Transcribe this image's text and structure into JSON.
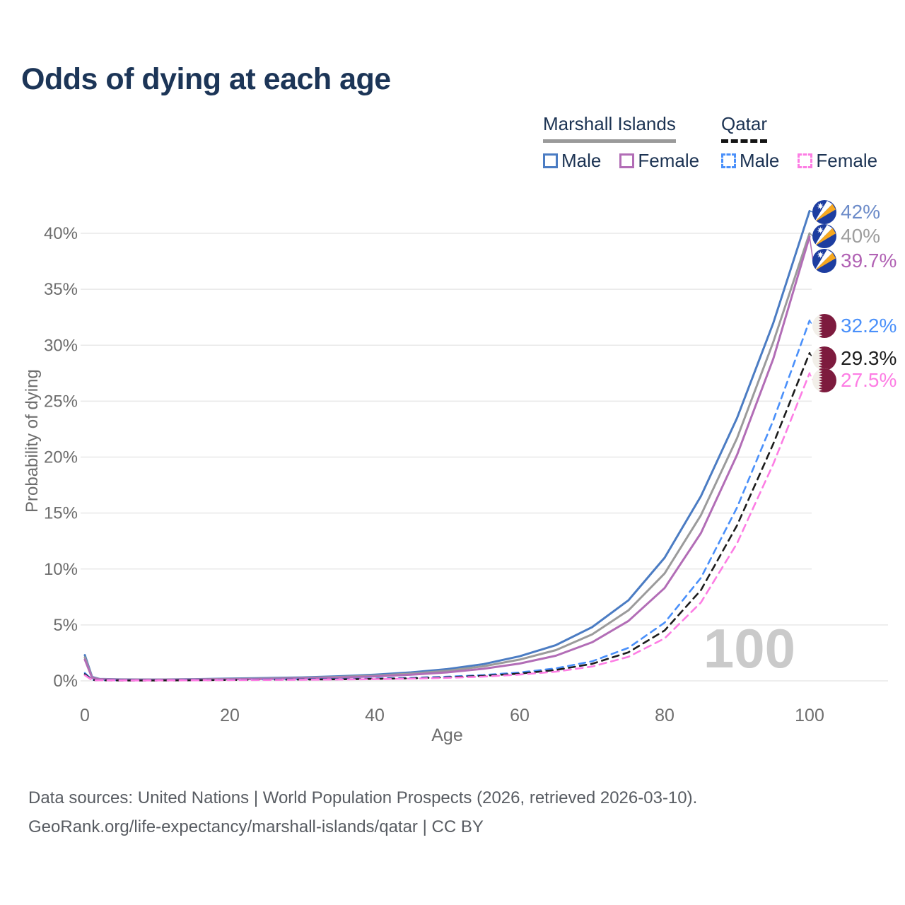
{
  "title": "Odds of dying at each age",
  "legend": {
    "groups": [
      {
        "label": "Marshall Islands",
        "line_style": "solid",
        "underline_color": "#9a9a9a",
        "items": [
          {
            "label": "Male",
            "color": "#4b7cc3"
          },
          {
            "label": "Female",
            "color": "#b26db6"
          }
        ]
      },
      {
        "label": "Qatar",
        "line_style": "dashed",
        "underline_color": "#141414",
        "items": [
          {
            "label": "Male",
            "color": "#4a90fa"
          },
          {
            "label": "Female",
            "color": "#fd7de4"
          }
        ]
      }
    ]
  },
  "axes": {
    "x": {
      "label": "Age",
      "ticks": [
        "0",
        "20",
        "40",
        "60",
        "80",
        "100"
      ]
    },
    "y": {
      "label": "Probability of dying",
      "ticks": [
        "0%",
        "5%",
        "10%",
        "15%",
        "20%",
        "25%",
        "30%",
        "35%",
        "40%"
      ]
    }
  },
  "watermark": "100",
  "end_labels": [
    {
      "value": "42%",
      "flag": "marshall-islands",
      "color": "#6d8cc9"
    },
    {
      "value": "40%",
      "flag": "marshall-islands",
      "color": "#9e9e9e"
    },
    {
      "value": "39.7%",
      "flag": "marshall-islands",
      "color": "#b162b4"
    },
    {
      "value": "32.2%",
      "flag": "qatar",
      "color": "#4a90fa"
    },
    {
      "value": "29.3%",
      "flag": "qatar",
      "color": "#1f1f1f"
    },
    {
      "value": "27.5%",
      "flag": "qatar",
      "color": "#fd7de4"
    }
  ],
  "footer": {
    "line1": "Data sources: United Nations | World Population Prospects (2026, retrieved 2026-03-10).",
    "line2": "GeoRank.org/life-expectancy/marshall-islands/qatar | CC BY"
  },
  "chart_data": {
    "type": "line",
    "title": "Odds of dying at each age",
    "xlabel": "Age",
    "ylabel": "Probability of dying",
    "xlim": [
      0,
      100
    ],
    "ylim_pct": [
      0,
      43
    ],
    "x_ticks": [
      0,
      20,
      40,
      60,
      80,
      100
    ],
    "y_ticks_pct": [
      0,
      5,
      10,
      15,
      20,
      25,
      30,
      35,
      40
    ],
    "grid": "horizontal",
    "legend_position": "top-right",
    "ages": [
      0,
      1,
      2,
      5,
      10,
      15,
      20,
      25,
      30,
      35,
      40,
      45,
      50,
      55,
      60,
      65,
      70,
      75,
      80,
      85,
      90,
      95,
      100
    ],
    "series": [
      {
        "name": "Marshall Islands — Male",
        "country": "Marshall Islands",
        "sex": "Male",
        "style": "solid",
        "color": "#4b7cc3",
        "end_label": "42%",
        "values_pct": [
          2.3,
          0.35,
          0.18,
          0.13,
          0.12,
          0.15,
          0.2,
          0.25,
          0.31,
          0.41,
          0.55,
          0.76,
          1.05,
          1.5,
          2.2,
          3.2,
          4.8,
          7.2,
          11.0,
          16.5,
          23.5,
          32.0,
          42.0
        ]
      },
      {
        "name": "Marshall Islands — Both sexes",
        "country": "Marshall Islands",
        "sex": "Both",
        "style": "solid",
        "color": "#9b9b9b",
        "end_label": "40%",
        "values_pct": [
          2.1,
          0.3,
          0.16,
          0.12,
          0.11,
          0.13,
          0.17,
          0.21,
          0.26,
          0.35,
          0.47,
          0.65,
          0.9,
          1.3,
          1.9,
          2.75,
          4.15,
          6.3,
          9.6,
          14.8,
          21.7,
          30.3,
          40.0
        ]
      },
      {
        "name": "Marshall Islands — Female",
        "country": "Marshall Islands",
        "sex": "Female",
        "style": "solid",
        "color": "#b26db6",
        "end_label": "39.7%",
        "values_pct": [
          1.9,
          0.27,
          0.14,
          0.1,
          0.1,
          0.12,
          0.14,
          0.17,
          0.22,
          0.29,
          0.4,
          0.55,
          0.76,
          1.08,
          1.55,
          2.25,
          3.45,
          5.35,
          8.3,
          13.2,
          20.2,
          28.8,
          39.7
        ]
      },
      {
        "name": "Qatar — Male",
        "country": "Qatar",
        "sex": "Male",
        "style": "dashed",
        "color": "#4a90fa",
        "end_label": "32.2%",
        "values_pct": [
          0.7,
          0.09,
          0.06,
          0.05,
          0.05,
          0.07,
          0.1,
          0.12,
          0.14,
          0.17,
          0.21,
          0.27,
          0.37,
          0.52,
          0.75,
          1.12,
          1.75,
          2.95,
          5.2,
          9.2,
          15.5,
          23.3,
          32.2
        ]
      },
      {
        "name": "Qatar — Both sexes",
        "country": "Qatar",
        "sex": "Both",
        "style": "dashed",
        "color": "#1c1c1c",
        "end_label": "29.3%",
        "values_pct": [
          0.6,
          0.08,
          0.05,
          0.04,
          0.04,
          0.06,
          0.08,
          0.1,
          0.12,
          0.14,
          0.18,
          0.23,
          0.32,
          0.45,
          0.65,
          0.97,
          1.52,
          2.55,
          4.5,
          8.1,
          13.9,
          21.2,
          29.3
        ]
      },
      {
        "name": "Qatar — Female",
        "country": "Qatar",
        "sex": "Female",
        "style": "dashed",
        "color": "#fd7de4",
        "end_label": "27.5%",
        "values_pct": [
          0.5,
          0.07,
          0.05,
          0.04,
          0.04,
          0.05,
          0.07,
          0.08,
          0.1,
          0.12,
          0.15,
          0.2,
          0.27,
          0.38,
          0.56,
          0.82,
          1.28,
          2.15,
          3.8,
          7.0,
          12.3,
          19.4,
          27.5
        ]
      }
    ]
  }
}
